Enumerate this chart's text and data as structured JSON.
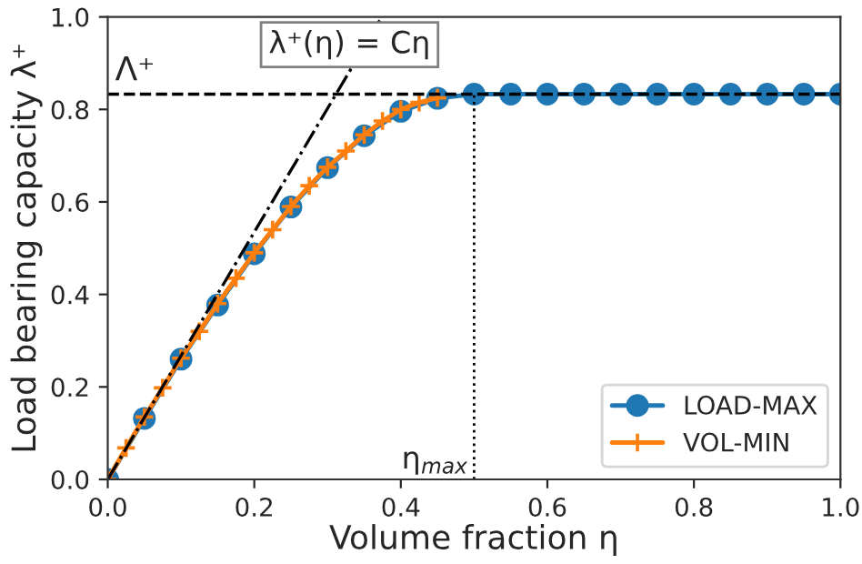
{
  "chart_data": {
    "type": "line",
    "xlabel": "Volume fraction η",
    "ylabel": "Load bearing capacity λ⁺",
    "series": [
      {
        "name": "LOAD-MAX",
        "color": "#1f77b4",
        "marker": "circle",
        "x": [
          0,
          0.05,
          0.1,
          0.15,
          0.2,
          0.25,
          0.3,
          0.35,
          0.4,
          0.45,
          0.5,
          0.55,
          0.6,
          0.65,
          0.7,
          0.75,
          0.8,
          0.85,
          0.9,
          0.95,
          1.0
        ],
        "values": [
          0,
          0.132,
          0.26,
          0.377,
          0.488,
          0.589,
          0.674,
          0.743,
          0.796,
          0.824,
          0.833,
          0.833,
          0.833,
          0.833,
          0.833,
          0.833,
          0.833,
          0.833,
          0.833,
          0.833,
          0.833
        ]
      },
      {
        "name": "VOL-MIN",
        "color": "#ff7f0e",
        "marker": "cross",
        "x": [
          0,
          0.025,
          0.05,
          0.075,
          0.1,
          0.125,
          0.15,
          0.175,
          0.2,
          0.225,
          0.25,
          0.275,
          0.3,
          0.325,
          0.35,
          0.375,
          0.4,
          0.425,
          0.45
        ],
        "values": [
          0,
          0.068,
          0.135,
          0.198,
          0.262,
          0.32,
          0.38,
          0.435,
          0.49,
          0.54,
          0.59,
          0.635,
          0.675,
          0.71,
          0.745,
          0.775,
          0.8,
          0.815,
          0.825
        ]
      },
      {
        "color": "#000000",
        "marker": "none",
        "line_style": "dashdot",
        "x": [
          0,
          0.374
        ],
        "values": [
          0,
          1.0
        ]
      }
    ],
    "ref_lines": [
      {
        "axis": "y",
        "value": 0.833,
        "label": "Λ⁺",
        "color": "#000000",
        "line_style": "dashed"
      },
      {
        "axis": "x",
        "value": 0.5,
        "label": "η$_{max}$",
        "color": "#000000",
        "line_style": "dotted"
      }
    ],
    "annotations": [
      "λ⁺(η) = Cη"
    ],
    "xlim": [
      0,
      1
    ],
    "ylim": [
      0,
      1
    ],
    "xticks": [
      {
        "value": 0,
        "label": "0.0"
      },
      {
        "value": 0.2,
        "label": "0.2"
      },
      {
        "value": 0.4,
        "label": "0.4"
      },
      {
        "value": 0.6,
        "label": "0.6"
      },
      {
        "value": 0.8,
        "label": "0.8"
      },
      {
        "value": 1,
        "label": "1.0"
      }
    ],
    "yticks": [
      {
        "value": 0,
        "label": "0.0"
      },
      {
        "value": 0.2,
        "label": "0.2"
      },
      {
        "value": 0.4,
        "label": "0.4"
      },
      {
        "value": 0.6,
        "label": "0.6"
      },
      {
        "value": 0.8,
        "label": "0.8"
      },
      {
        "value": 1,
        "label": "1.0"
      }
    ],
    "legend": "bottom right",
    "grid": false
  }
}
